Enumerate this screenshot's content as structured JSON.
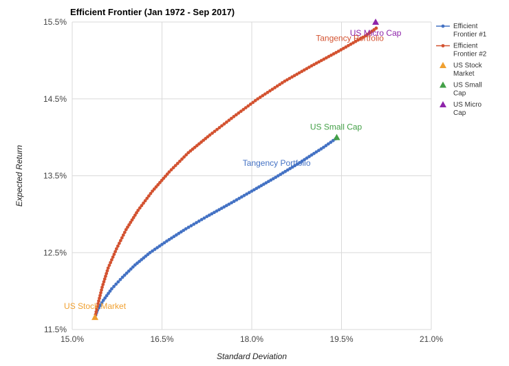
{
  "chart_data": {
    "type": "scatter",
    "title": "Efficient Frontier (Jan 1972 - Sep 2017)",
    "xlabel": "Standard Deviation",
    "ylabel": "Expected Return",
    "xlim": [
      15.0,
      21.0
    ],
    "ylim": [
      11.5,
      15.5
    ],
    "x_ticks": [
      15.0,
      16.5,
      18.0,
      19.5,
      21.0
    ],
    "x_tick_labels": [
      "15.0%",
      "16.5%",
      "18.0%",
      "19.5%",
      "21.0%"
    ],
    "y_ticks": [
      11.5,
      12.5,
      13.5,
      14.5,
      15.5
    ],
    "y_tick_labels": [
      "11.5%",
      "12.5%",
      "13.5%",
      "14.5%",
      "15.5%"
    ],
    "grid": true,
    "legend_position": "right",
    "series": [
      {
        "name": "Efficient Frontier #1",
        "legend_label": [
          "Efficient",
          "Frontier #1"
        ],
        "kind": "line-markers",
        "color": "#4472c4",
        "x": [
          15.38,
          15.42,
          15.52,
          15.66,
          15.84,
          16.05,
          16.3,
          16.58,
          16.9,
          17.25,
          17.62,
          18.0,
          18.4,
          18.8,
          19.2,
          19.4
        ],
        "y": [
          11.66,
          11.75,
          11.88,
          12.03,
          12.18,
          12.34,
          12.5,
          12.65,
          12.81,
          12.97,
          13.13,
          13.3,
          13.48,
          13.67,
          13.87,
          13.98
        ]
      },
      {
        "name": "Efficient Frontier #2",
        "legend_label": [
          "Efficient",
          "Frontier #2"
        ],
        "kind": "line-markers",
        "color": "#d35230",
        "x": [
          15.38,
          15.42,
          15.5,
          15.6,
          15.74,
          15.9,
          16.1,
          16.34,
          16.62,
          16.94,
          17.3,
          17.7,
          18.1,
          18.55,
          19.0,
          19.45,
          19.9,
          20.08
        ],
        "y": [
          11.66,
          11.8,
          12.05,
          12.3,
          12.55,
          12.8,
          13.05,
          13.3,
          13.55,
          13.8,
          14.03,
          14.27,
          14.5,
          14.73,
          14.93,
          15.12,
          15.32,
          15.42
        ]
      },
      {
        "name": "US Stock Market",
        "legend_label": [
          "US Stock",
          "Market"
        ],
        "kind": "point",
        "color": "#f0a030",
        "x": [
          15.38
        ],
        "y": [
          11.66
        ]
      },
      {
        "name": "US Small Cap",
        "legend_label": [
          "US Small",
          "Cap"
        ],
        "kind": "point",
        "color": "#43a047",
        "x": [
          19.42
        ],
        "y": [
          14.0
        ]
      },
      {
        "name": "US Micro Cap",
        "legend_label": [
          "US Micro",
          "Cap"
        ],
        "kind": "point",
        "color": "#8e24aa",
        "x": [
          20.07
        ],
        "y": [
          15.5
        ]
      }
    ],
    "annotations": [
      {
        "text": "US Micro Cap",
        "x": 20.07,
        "y": 15.5,
        "color": "#8e24aa",
        "anchor": "middle",
        "dx": 0,
        "dy": 20
      },
      {
        "text": "Tangency Portfolio",
        "x": 19.8,
        "y": 15.28,
        "color": "#d35230",
        "anchor": "middle",
        "dx": -14,
        "dy": 3
      },
      {
        "text": "US Small Cap",
        "x": 19.42,
        "y": 14.0,
        "color": "#43a047",
        "anchor": "middle",
        "dx": -1,
        "dy": -11
      },
      {
        "text": "Tangency Portfolio",
        "x": 18.45,
        "y": 13.55,
        "color": "#4472c4",
        "anchor": "middle",
        "dx": -3,
        "dy": -9
      },
      {
        "text": "US Stock Market",
        "x": 15.38,
        "y": 11.66,
        "color": "#f0a030",
        "anchor": "middle",
        "dx": 0,
        "dy": -12
      }
    ]
  }
}
